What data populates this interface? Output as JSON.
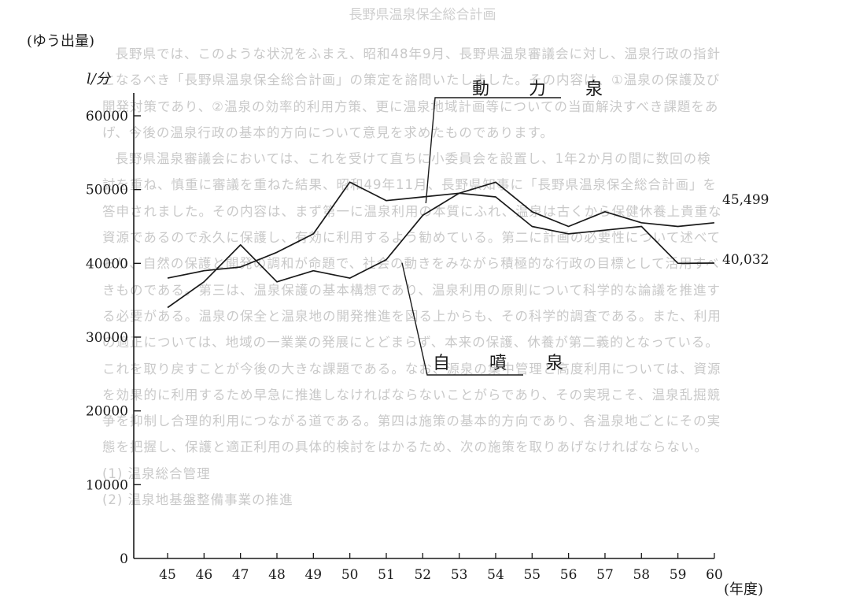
{
  "page": {
    "title": "長野県温泉保全総合計画",
    "background_paragraphs": [
      "長野県では、このような状況をふまえ、昭和48年9月、長野県温泉審議会に対し、温泉行政の指針となるべき「長野県温泉保全総合計画」の策定を諮問いたしました。その内容は、①温泉の保護及び開発対策であり、②温泉の効率的利用方策、更に温泉地域計画等についての当面解決すべき課題をあげ、今後の温泉行政の基本的方向について意見を求めたものであります。",
      "長野県温泉審議会においては、これを受けて直ちに小委員会を設置し、1年2か月の間に数回の検討を重ね、慎重に審議を重ねた結果、昭和49年11月、長野県知事に「長野県温泉保全総合計画」を答申されました。その内容は、まず第一に温泉利用の本質にふれ、温泉は古くから保健休養上貴重な資源であるので永久に保護し、有効に利用するよう勧めている。第二に計画の必要性について述べており、自然の保護と開発の調和が命題で、社会の動きをみながら積極的な行政の目標として活用すべきものである。第三は、温泉保護の基本構想であり、温泉利用の原則について科学的な論議を推進する必要がある。温泉の保全と温泉地の開発推進を図る上からも、その科学的調査である。また、利用の適正については、地域の一業業の発展にとどまらず、本来の保護、休養が第二義的となっている。これを取り戻すことが今後の大きな課題である。なお、源泉の集中管理と高度利用については、資源を効果的に利用するため早急に推進しなければならないことがらであり、その実現こそ、温泉乱掘競争を抑制し合理的利用につながる道である。第四は施策の基本的方向であり、各温泉地ごとにその実態を把握し、保護と適正利用の具体的検討をはかるため、次の施策を取りあげなければならない。"
    ],
    "subheadings": [
      "(1) 温泉総合管理",
      "(2) 温泉地基盤整備事業の推進"
    ]
  },
  "chart_data": {
    "type": "line",
    "ylabel": "(ゆう出量)",
    "yunit": "l/分",
    "xlabel": "(年度)",
    "ylim": [
      0,
      60000
    ],
    "yticks": [
      0,
      10000,
      20000,
      30000,
      40000,
      50000,
      60000
    ],
    "ytick_labels": [
      "0",
      "10000",
      "20000",
      "30000",
      "40000",
      "50000",
      "60000"
    ],
    "categories": [
      "45",
      "46",
      "47",
      "48",
      "49",
      "50",
      "51",
      "52",
      "53",
      "54",
      "55",
      "56",
      "57",
      "58",
      "59",
      "60"
    ],
    "series": [
      {
        "name": "動　力　泉",
        "values": [
          34000,
          37500,
          42500,
          37500,
          39000,
          38000,
          40500,
          46500,
          49500,
          51000,
          47000,
          45000,
          47000,
          45500,
          45000,
          45499
        ],
        "end_label": "45,499"
      },
      {
        "name": "自　噴　泉",
        "values": [
          38000,
          39000,
          39500,
          41500,
          44000,
          51000,
          48500,
          49000,
          49500,
          49000,
          45000,
          44000,
          44500,
          45000,
          40000,
          40032
        ],
        "end_label": "40,032"
      }
    ],
    "colors": {
      "line": "#1a1a1a",
      "axis": "#1a1a1a"
    }
  }
}
